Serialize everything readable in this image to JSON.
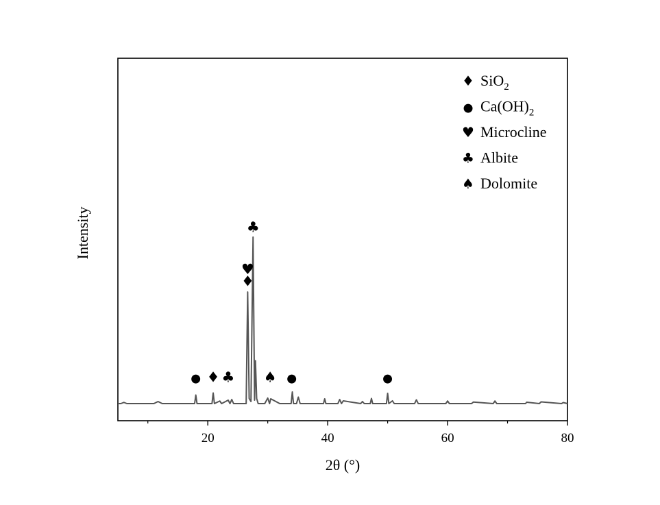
{
  "chart_data": {
    "type": "line",
    "xlabel": "2θ (°)",
    "ylabel": "Intensity",
    "xlim": [
      5,
      80
    ],
    "ylim": [
      0,
      100
    ],
    "x_ticks": [
      20,
      40,
      60,
      80
    ],
    "y_ticks_shown": false,
    "grid": false,
    "legend_position": "top-right",
    "line_color": "#555555",
    "series": [
      {
        "x": [
          5,
          5.5,
          6.0,
          6.5,
          7.0,
          11.0,
          11.7,
          12.4,
          17.8,
          18.0,
          18.2,
          20.7,
          20.9,
          21.1,
          22.0,
          22.3,
          23.4,
          23.7,
          24.0,
          24.3,
          26.4,
          26.65,
          26.9,
          27.2,
          27.55,
          27.8,
          27.95,
          28.15,
          28.4,
          29.5,
          30.0,
          30.3,
          30.5,
          32.0,
          33.9,
          34.1,
          34.3,
          34.8,
          35.1,
          35.4,
          39.3,
          39.5,
          39.7,
          41.7,
          42.0,
          42.3,
          42.6,
          45.5,
          45.8,
          46.1,
          47.1,
          47.3,
          47.5,
          49.8,
          50.0,
          50.2,
          50.8,
          51.1,
          54.5,
          54.8,
          55.1,
          59.7,
          60.0,
          60.3,
          64.0,
          64.3,
          67.6,
          67.9,
          68.2,
          73.0,
          73.2,
          75.3,
          75.6,
          79.0,
          79.3,
          80
        ],
        "y": [
          0,
          0,
          0.7,
          0,
          0,
          0,
          1.2,
          0,
          0,
          5.0,
          0,
          0,
          6.2,
          0,
          1.5,
          0,
          2.0,
          0,
          2.4,
          0,
          0,
          65.0,
          3.0,
          1.2,
          97.0,
          2.0,
          25.0,
          3.0,
          0,
          0,
          3.2,
          0,
          2.8,
          0,
          0,
          6.8,
          0,
          0,
          3.8,
          0,
          0,
          2.8,
          0,
          0,
          2.4,
          0,
          1.6,
          0,
          1.2,
          0,
          0,
          3.0,
          0,
          0,
          6.0,
          0,
          1.6,
          0,
          0,
          2.2,
          0,
          0,
          1.5,
          0,
          0,
          0.9,
          0,
          1.5,
          0,
          0,
          0.8,
          0,
          1.0,
          0,
          0.6,
          0
        ]
      }
    ],
    "legend": [
      {
        "symbol": "♦",
        "label": "SiO",
        "sub": "2",
        "label_after": ""
      },
      {
        "symbol": "●",
        "label": "Ca(OH)",
        "sub": "2",
        "label_after": ""
      },
      {
        "symbol": "♥",
        "label": "Microcline",
        "sub": "",
        "label_after": ""
      },
      {
        "symbol": "♣",
        "label": "Albite",
        "sub": "",
        "label_after": ""
      },
      {
        "symbol": "♠",
        "label": "Dolomite",
        "sub": "",
        "label_after": ""
      }
    ],
    "annotations": [
      {
        "symbol": "●",
        "x": 18.0,
        "y_level": 12.5
      },
      {
        "symbol": "♦",
        "x": 20.9,
        "y_level": 12.5
      },
      {
        "symbol": "♣",
        "x": 23.4,
        "y_level": 12.5
      },
      {
        "symbol": "♠",
        "x": 30.4,
        "y_level": 12.5
      },
      {
        "symbol": "●",
        "x": 34.0,
        "y_level": 12.5
      },
      {
        "symbol": "●",
        "x": 50.0,
        "y_level": 12.5
      },
      {
        "symbol": "♦",
        "x": 26.65,
        "y_level": 68.5
      },
      {
        "symbol": "♥",
        "x": 26.65,
        "y_level": 75.5
      },
      {
        "symbol": "♣",
        "x": 27.55,
        "y_level": 100
      }
    ]
  }
}
